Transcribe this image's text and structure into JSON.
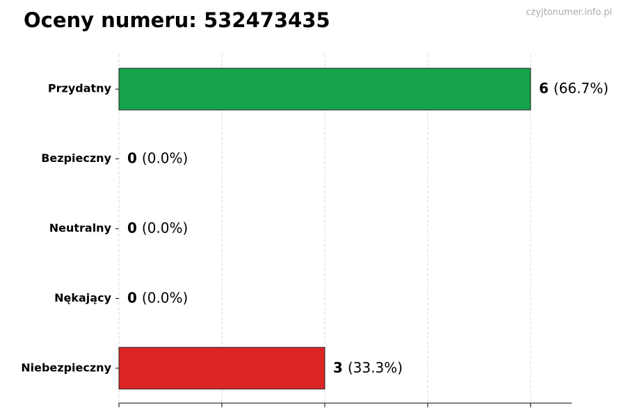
{
  "chart_data": {
    "type": "barh",
    "title": "Oceny numeru: 532473435",
    "watermark": "czyjtonumer.info.pl",
    "categories": [
      "Przydatny",
      "Bezpieczny",
      "Neutralny",
      "Nękający",
      "Niebezpieczny"
    ],
    "values": [
      6,
      0,
      0,
      0,
      3
    ],
    "percent_labels": [
      "(66.7%)",
      "(0.0%)",
      "(0.0%)",
      "(0.0%)",
      "(33.3%)"
    ],
    "colors": [
      "#16a34a",
      "#2563eb",
      "#9ca3af",
      "#f59e0b",
      "#dc2626"
    ],
    "xlim": [
      0,
      6.6
    ],
    "xticks": [
      0,
      1.5,
      3,
      4.5,
      6
    ],
    "grid": true
  }
}
